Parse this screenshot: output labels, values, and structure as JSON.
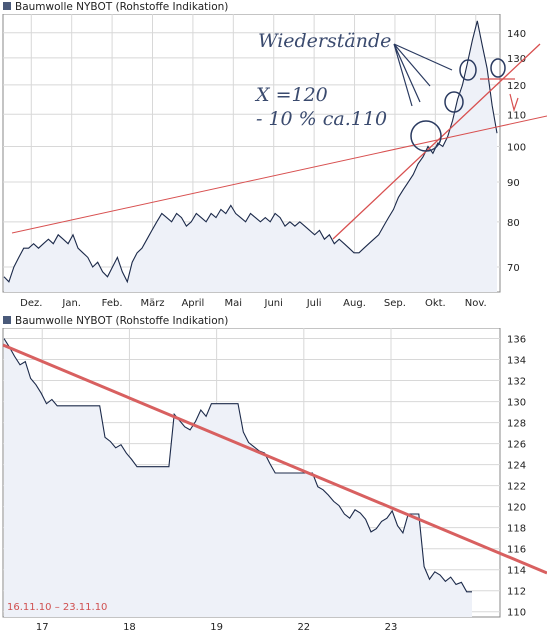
{
  "chart_data": [
    {
      "type": "area",
      "title": "Baumwolle NYBOT (Rohstoffe Indikation)",
      "x_tick_labels": [
        "Dez.",
        "Jan.",
        "Feb.",
        "März",
        "April",
        "Mai",
        "Juni",
        "Juli",
        "Aug.",
        "Sep.",
        "Okt.",
        "Nov."
      ],
      "y_scale": "log",
      "y_ticks": [
        70,
        80,
        90,
        100,
        110,
        120,
        130,
        140
      ],
      "ylim": [
        65,
        148
      ],
      "grid": true,
      "series": [
        {
          "values": [
            68,
            67,
            70,
            72,
            74,
            74,
            75,
            74,
            75,
            76,
            75,
            77,
            76,
            75,
            77,
            74,
            73,
            72,
            70,
            71,
            69,
            68,
            70,
            72,
            69,
            67,
            71,
            73,
            74,
            76,
            78,
            80,
            82,
            81,
            80,
            82,
            81,
            79,
            80,
            82,
            81,
            80,
            82,
            81,
            83,
            82,
            84,
            82,
            81,
            80,
            82,
            81,
            80,
            81,
            80,
            82,
            81,
            79,
            80,
            79,
            80,
            79,
            78,
            77,
            78,
            76,
            77,
            75,
            76,
            75,
            74,
            73,
            73,
            74,
            75,
            76,
            77,
            79,
            81,
            83,
            86,
            88,
            90,
            92,
            95,
            97,
            100,
            98,
            101,
            100,
            103,
            108,
            115,
            120,
            128,
            137,
            145,
            135,
            126,
            113,
            104
          ]
        }
      ],
      "annotations": {
        "resistance_label": "Wiederstände",
        "target_line1": "X =120",
        "target_line2": "- 10 % ca.110"
      }
    },
    {
      "type": "line",
      "title": "Baumwolle NYBOT (Rohstoffe Indikation)",
      "x_tick_labels": [
        "17",
        "18",
        "19",
        "22",
        "23"
      ],
      "y_ticks": [
        110,
        112,
        114,
        116,
        118,
        120,
        122,
        124,
        126,
        128,
        130,
        132,
        134,
        136
      ],
      "ylim": [
        109.5,
        137
      ],
      "grid": true,
      "date_range_label": "16.11.10 – 23.11.10",
      "series": [
        {
          "values": [
            136,
            135.2,
            134.3,
            133.5,
            133.8,
            132.2,
            131.6,
            130.8,
            129.8,
            130.2,
            129.6,
            129.6,
            129.6,
            129.6,
            129.6,
            129.6,
            129.6,
            129.6,
            129.6,
            126.6,
            126.2,
            125.6,
            125.9,
            125.1,
            124.5,
            123.8,
            123.8,
            123.8,
            123.8,
            123.8,
            123.8,
            123.8,
            128.8,
            128.2,
            127.6,
            127.3,
            128.1,
            129.2,
            128.6,
            129.8,
            129.8,
            129.8,
            129.8,
            129.8,
            129.8,
            127.1,
            126.1,
            125.7,
            125.3,
            125.1,
            124.1,
            123.2,
            123.2,
            123.2,
            123.2,
            123.2,
            123.2,
            123.2,
            123.2,
            121.9,
            121.6,
            121.1,
            120.5,
            120.1,
            119.3,
            118.9,
            119.7,
            119.4,
            118.8,
            117.6,
            117.9,
            118.6,
            118.9,
            119.6,
            118.2,
            117.5,
            119.3,
            119.3,
            119.3,
            114.3,
            113.1,
            113.8,
            113.5,
            112.9,
            113.3,
            112.6,
            112.8,
            111.9,
            111.9
          ]
        }
      ]
    }
  ]
}
